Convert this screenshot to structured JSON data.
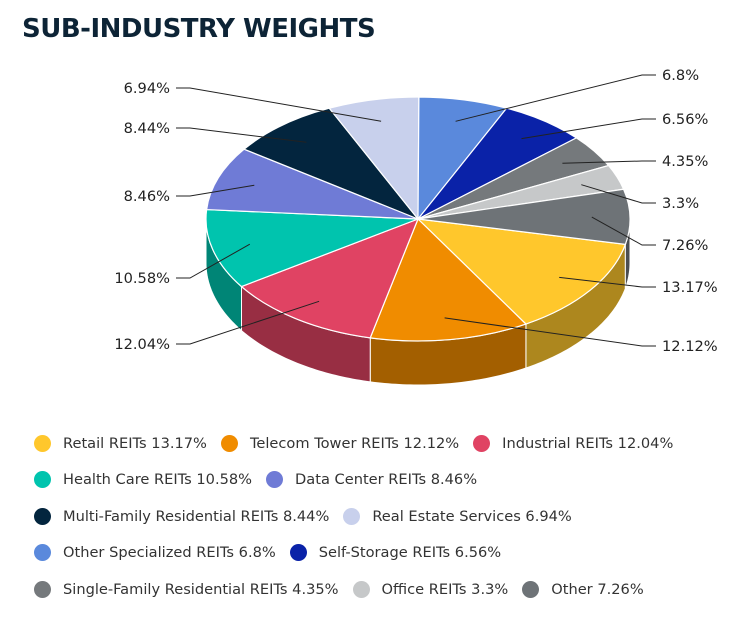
{
  "chart_data": {
    "type": "pie",
    "title": "SUB-INDUSTRY WEIGHTS",
    "unit": "%",
    "series": [
      {
        "name": "Retail REITs",
        "value": 13.17,
        "label": "13.17%",
        "legend": "Retail REITs 13.17%",
        "color": "#ffc72c"
      },
      {
        "name": "Telecom Tower REITs",
        "value": 12.12,
        "label": "12.12%",
        "legend": "Telecom Tower REITs 12.12%",
        "color": "#f08c00"
      },
      {
        "name": "Industrial REITs",
        "value": 12.04,
        "label": "12.04%",
        "legend": "Industrial REITs 12.04%",
        "color": "#e04363"
      },
      {
        "name": "Health Care REITs",
        "value": 10.58,
        "label": "10.58%",
        "legend": "Health Care REITs 10.58%",
        "color": "#00c4ae"
      },
      {
        "name": "Data Center REITs",
        "value": 8.46,
        "label": "8.46%",
        "legend": "Data Center REITs 8.46%",
        "color": "#6f7bd6"
      },
      {
        "name": "Multi-Family Residential REITs",
        "value": 8.44,
        "label": "8.44%",
        "legend": "Multi-Family Residential REITs 8.44%",
        "color": "#03253e"
      },
      {
        "name": "Real Estate Services",
        "value": 6.94,
        "label": "6.94%",
        "legend": "Real Estate Services 6.94%",
        "color": "#c8d0ec"
      },
      {
        "name": "Other Specialized REITs",
        "value": 6.8,
        "label": "6.8%",
        "legend": "Other Specialized REITs 6.8%",
        "color": "#5a89dc"
      },
      {
        "name": "Self-Storage REITs",
        "value": 6.56,
        "label": "6.56%",
        "legend": "Self-Storage REITs 6.56%",
        "color": "#0a22a8"
      },
      {
        "name": "Single-Family Residential REITs",
        "value": 4.35,
        "label": "4.35%",
        "legend": "Single-Family Residential REITs 4.35%",
        "color": "#75797c"
      },
      {
        "name": "Office REITs",
        "value": 3.3,
        "label": "3.3%",
        "legend": "Office REITs 3.3%",
        "color": "#c6c8c9"
      },
      {
        "name": "Other",
        "value": 7.26,
        "label": "7.26%",
        "legend": "Other 7.26%",
        "color": "#6e7377"
      }
    ]
  }
}
